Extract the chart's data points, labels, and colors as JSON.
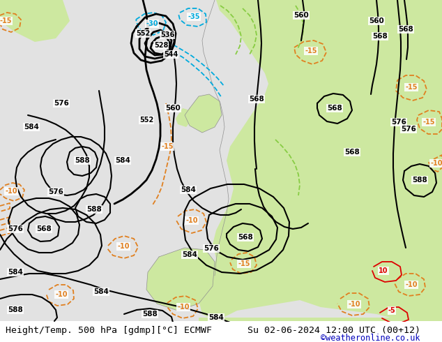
{
  "title_left": "Height/Temp. 500 hPa [gdmp][°C] ECMWF",
  "title_right": "Su 02-06-2024 12:00 UTC (00+12)",
  "credit": "©weatheronline.co.uk",
  "bg_ocean_color": "#e2e2e2",
  "bg_land_color": "#cde8a0",
  "bg_coast_color": "#b0b0b0",
  "contour_black": "#000000",
  "contour_orange": "#e08020",
  "contour_red": "#dd0000",
  "contour_cyan": "#00aadd",
  "contour_lgreen": "#88cc44",
  "bottom_bg": "#ffffff",
  "text_color": "#000000",
  "credit_color": "#0000bb",
  "font_size_title": 9.5,
  "font_size_credit": 8.5,
  "lw_black_bold": 2.0,
  "lw_black": 1.5,
  "lw_color": 1.3
}
